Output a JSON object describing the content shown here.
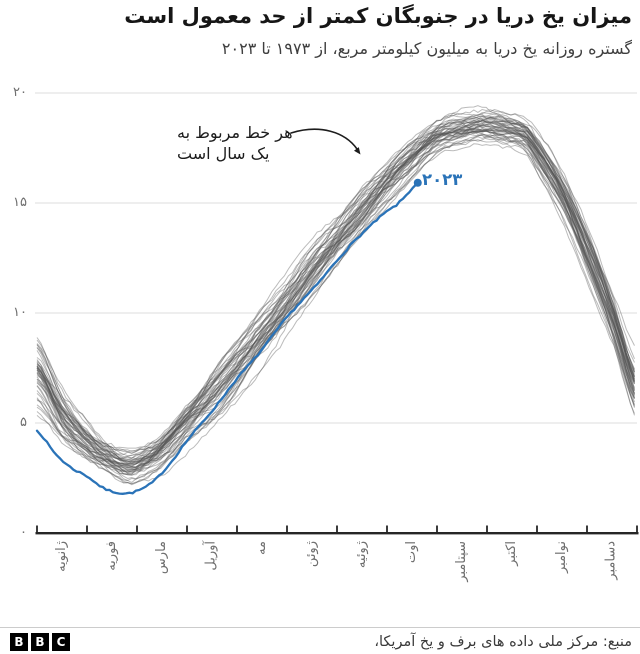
{
  "chart_data": {
    "type": "line",
    "title": "میزان یخ دریا در جنوبگان کمتر از حد معمول است",
    "subtitle": "گستره روزانه یخ دریا به میلیون کیلومتر مربع، از ۱۹۷۳ تا ۲۰۲۳",
    "grid": "horizontal",
    "legend_position": "none",
    "ylim": [
      0,
      20
    ],
    "x_range_days": [
      0,
      364
    ],
    "yticks": [
      {
        "value": 20,
        "label": "۲۰"
      },
      {
        "value": 15,
        "label": "۱۵"
      },
      {
        "value": 10,
        "label": "۱۰"
      },
      {
        "value": 5,
        "label": "۵"
      },
      {
        "value": 0,
        "label": "۰"
      }
    ],
    "months": [
      "ژانویه",
      "فوریه",
      "مارس",
      "آوریل",
      "مه",
      "ژوئن",
      "ژوئیه",
      "اوت",
      "سپتامبر",
      "اکتبر",
      "نوامبر",
      "دسامبر"
    ],
    "annotation": {
      "line1": "هر خط مربوط به",
      "line2": "یک سال است"
    },
    "ensemble": {
      "line_count": 50,
      "line_color": "#555555",
      "line_opacity": 0.4,
      "mean_points": [
        [
          0,
          7.2
        ],
        [
          15,
          5.3
        ],
        [
          31,
          4.05
        ],
        [
          45,
          3.35
        ],
        [
          55,
          3.05
        ],
        [
          62,
          3.15
        ],
        [
          75,
          3.7
        ],
        [
          90,
          4.9
        ],
        [
          105,
          6.1
        ],
        [
          120,
          7.4
        ],
        [
          135,
          8.8
        ],
        [
          151,
          10.3
        ],
        [
          166,
          11.8
        ],
        [
          181,
          13.2
        ],
        [
          196,
          14.55
        ],
        [
          212,
          15.9
        ],
        [
          227,
          17.0
        ],
        [
          243,
          18.0
        ],
        [
          258,
          18.35
        ],
        [
          270,
          18.5
        ],
        [
          283,
          18.4
        ],
        [
          296,
          18.1
        ],
        [
          303,
          17.4
        ],
        [
          319,
          15.4
        ],
        [
          334,
          12.8
        ],
        [
          349,
          9.9
        ],
        [
          364,
          6.6
        ]
      ],
      "spread_points": [
        [
          0,
          1.9
        ],
        [
          31,
          1.05
        ],
        [
          55,
          0.8
        ],
        [
          90,
          1.15
        ],
        [
          120,
          1.5
        ],
        [
          151,
          1.4
        ],
        [
          181,
          1.25
        ],
        [
          212,
          1.15
        ],
        [
          243,
          0.85
        ],
        [
          270,
          0.8
        ],
        [
          296,
          0.85
        ],
        [
          303,
          0.95
        ],
        [
          319,
          1.2
        ],
        [
          334,
          1.4
        ],
        [
          364,
          1.5
        ]
      ],
      "outlier_peak": {
        "year_index": 5,
        "day": 262,
        "amplitude": 0.9,
        "width_days": 18
      }
    },
    "series_2023": {
      "label": "۲۰۲۳",
      "color": "#2a73b8",
      "points": [
        [
          0,
          4.65
        ],
        [
          10,
          3.7
        ],
        [
          20,
          3.0
        ],
        [
          31,
          2.55
        ],
        [
          40,
          2.05
        ],
        [
          48,
          1.85
        ],
        [
          55,
          1.8
        ],
        [
          62,
          1.95
        ],
        [
          70,
          2.3
        ],
        [
          80,
          3.1
        ],
        [
          90,
          4.1
        ],
        [
          100,
          5.0
        ],
        [
          110,
          5.9
        ],
        [
          120,
          6.9
        ],
        [
          135,
          8.2
        ],
        [
          151,
          9.75
        ],
        [
          160,
          10.5
        ],
        [
          170,
          11.3
        ],
        [
          181,
          12.3
        ],
        [
          193,
          13.3
        ],
        [
          205,
          14.15
        ],
        [
          212,
          14.6
        ],
        [
          218,
          14.9
        ],
        [
          224,
          15.35
        ],
        [
          228,
          15.7
        ],
        [
          231,
          15.92
        ]
      ]
    }
  },
  "footer": {
    "source": "منبع: مرکز ملی داده های برف و یخ  آمریکا،",
    "logo_letters": [
      "B",
      "B",
      "C"
    ]
  }
}
